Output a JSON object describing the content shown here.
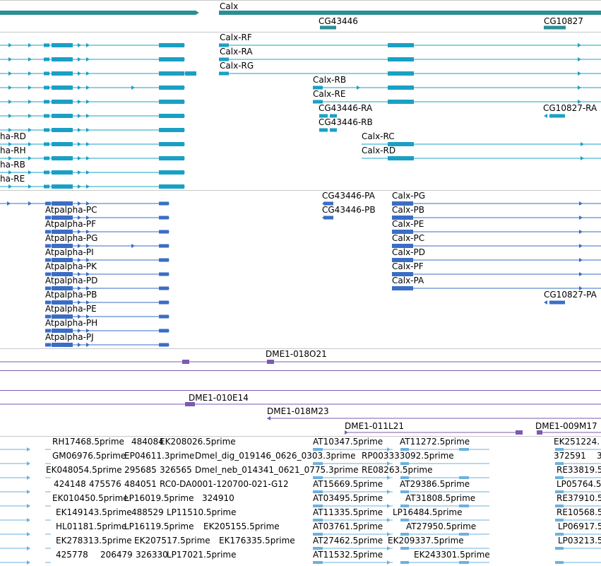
{
  "colors": {
    "gene": "#2a8f94",
    "flybase_transcript": "#1aa0c4",
    "refseq_transcript": "#3a6dc6",
    "bac": "#7b5ab0",
    "est": "#6db1de",
    "separator": "#c8c8c8"
  },
  "tracks": {
    "genes": {
      "features": [
        {
          "label": "Calx",
          "start": 0,
          "end": 0
        },
        {
          "label": "CG43446",
          "start": 0,
          "end": 0
        },
        {
          "label": "CG10827",
          "start": 0,
          "end": 0
        }
      ]
    },
    "flybase_transcripts": {
      "left_labels": [
        "ha-RD",
        "ha-RH",
        "ha-RB",
        "ha-RE"
      ],
      "right_labels": [
        "Calx-RF",
        "Calx-RA",
        "Calx-RG",
        "Calx-RB",
        "Calx-RE",
        "CG43446-RA",
        "CG43446-RB",
        "Calx-RC",
        "Calx-RD",
        "CG10827-RA"
      ]
    },
    "refseq_transcripts": {
      "left_labels": [
        "Atpalpha-PC",
        "Atpalpha-PF",
        "Atpalpha-PG",
        "Atpalpha-PI",
        "Atpalpha-PK",
        "Atpalpha-PD",
        "Atpalpha-PB",
        "Atpalpha-PE",
        "Atpalpha-PH",
        "Atpalpha-PJ"
      ],
      "mid_labels": [
        "CG43446-PA",
        "CG43446-PB"
      ],
      "right_labels": [
        "Calx-PG",
        "Calx-PB",
        "Calx-PE",
        "Calx-PC",
        "Calx-PD",
        "Calx-PF",
        "Calx-PA",
        "CG10827-PA"
      ]
    },
    "bac_clones": [
      "DME1-018O21",
      "DME1-010E14",
      "DME1-018M23",
      "DME1-011L21",
      "DME1-009M17"
    ],
    "ests": [
      "RH17468.5prime",
      "484084",
      "EK208026.5prime",
      "AT10347.5prime",
      "AT11272.5prime",
      "EK251224.",
      "GM06976.5prime",
      "EP04611.3prime",
      "Dmel_dig_019146_0626_0303.3prime",
      "RP003333092.5prime",
      "372591",
      "3",
      "EK048054.5prime",
      "295685",
      "326565",
      "Dmel_neb_014341_0621_0775.3prime",
      "RE08263.5prime",
      "RE33819.5",
      "424148",
      "475576",
      "484051",
      "RC0-DA0001-120700-021-G12",
      "AT15669.5prime",
      "AT29386.5prime",
      "LP05764.5",
      "EK010450.5prime",
      "LP16019.5prime",
      "324910",
      "AT03495.5prime",
      "AT31808.5prime",
      "RE37910.5",
      "EK149143.5prime",
      "488529",
      "LP11510.5prime",
      "AT11335.5prime",
      "LP16484.5prime",
      "RE10568.5",
      "HL01181.5prime",
      "LP16119.5prime",
      "EK205155.5prime",
      "AT03761.5prime",
      "AT27950.5prime",
      "LP06917.5",
      "EK278313.5prime",
      "EK207517.5prime",
      "EK176335.5prime",
      "AT27462.5prime",
      "EK209337.5prime",
      "LP03213.5",
      "425778",
      "206479",
      "326330",
      "LP17021.5prime",
      "AT11532.5prime",
      "EK243301.5prime"
    ]
  }
}
